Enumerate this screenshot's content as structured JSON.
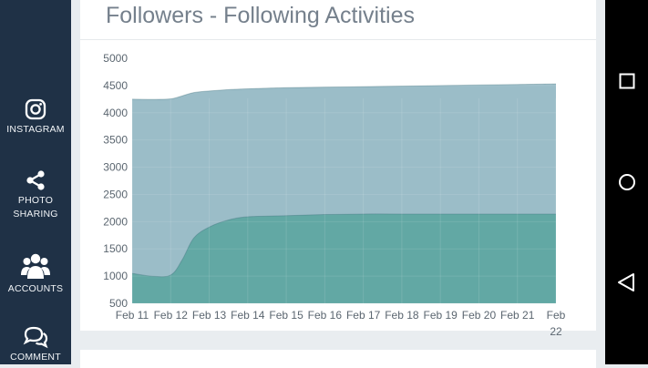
{
  "sidebar": {
    "items": [
      {
        "label": "INSTAGRAM",
        "icon": "instagram-icon"
      },
      {
        "label": "PHOTO\nSHARING",
        "icon": "share-icon"
      },
      {
        "label": "ACCOUNTS",
        "icon": "users-icon"
      },
      {
        "label": "COMMENT",
        "icon": "comment-icon"
      }
    ]
  },
  "card": {
    "title": "Followers - Following Activities"
  },
  "chart_data": {
    "type": "area",
    "title": "Followers - Following Activities",
    "categories": [
      "Feb 11",
      "Feb 12",
      "Feb 13",
      "Feb 14",
      "Feb 15",
      "Feb 16",
      "Feb 17",
      "Feb 18",
      "Feb 19",
      "Feb 20",
      "Feb 21",
      "Feb 22"
    ],
    "x": [
      11,
      11.5,
      12,
      12.3,
      12.6,
      13,
      13.5,
      14,
      15,
      16,
      17,
      18,
      19,
      20,
      21,
      22
    ],
    "series": [
      {
        "name": "",
        "color": "#9bbdc8",
        "values": [
          4250,
          4245,
          4255,
          4310,
          4370,
          4400,
          4425,
          4440,
          4460,
          4470,
          4480,
          4490,
          4500,
          4510,
          4520,
          4530
        ]
      },
      {
        "name": "",
        "color": "#62a8a4",
        "values": [
          1050,
          1000,
          1020,
          1300,
          1700,
          1900,
          2030,
          2090,
          2110,
          2130,
          2140,
          2140,
          2140,
          2140,
          2140,
          2140
        ]
      }
    ],
    "y_ticks": [
      500,
      1000,
      1500,
      2000,
      2500,
      3000,
      3500,
      4000,
      4500,
      5000
    ],
    "ylim": [
      500,
      5000
    ],
    "xlim": [
      11,
      22
    ],
    "xlabel": "",
    "ylabel": "",
    "grid": true
  },
  "navbar": {
    "buttons": [
      "recent-apps",
      "home",
      "back"
    ]
  },
  "colors": {
    "sidebar_bg": "#1f3146",
    "page_bg": "#e9edf0",
    "title_text": "#75808c",
    "followers_fill": "#9bbdc8",
    "following_fill": "#62a8a4"
  }
}
